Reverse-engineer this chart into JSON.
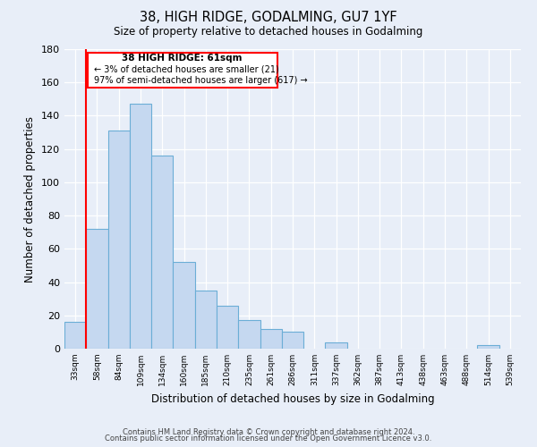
{
  "title": "38, HIGH RIDGE, GODALMING, GU7 1YF",
  "subtitle": "Size of property relative to detached houses in Godalming",
  "xlabel": "Distribution of detached houses by size in Godalming",
  "ylabel": "Number of detached properties",
  "bin_labels": [
    "33sqm",
    "58sqm",
    "84sqm",
    "109sqm",
    "134sqm",
    "160sqm",
    "185sqm",
    "210sqm",
    "235sqm",
    "261sqm",
    "286sqm",
    "311sqm",
    "337sqm",
    "362sqm",
    "387sqm",
    "413sqm",
    "438sqm",
    "463sqm",
    "488sqm",
    "514sqm",
    "539sqm"
  ],
  "bar_values": [
    16,
    72,
    131,
    147,
    116,
    52,
    35,
    26,
    17,
    12,
    10,
    0,
    4,
    0,
    0,
    0,
    0,
    0,
    0,
    2,
    0
  ],
  "bar_color": "#c5d8f0",
  "bar_edge_color": "#6baed6",
  "ylim": [
    0,
    180
  ],
  "yticks": [
    0,
    20,
    40,
    60,
    80,
    100,
    120,
    140,
    160,
    180
  ],
  "red_line_bin": 1,
  "annotation_text_line1": "38 HIGH RIDGE: 61sqm",
  "annotation_text_line2": "← 3% of detached houses are smaller (21)",
  "annotation_text_line3": "97% of semi-detached houses are larger (617) →",
  "footer_line1": "Contains HM Land Registry data © Crown copyright and database right 2024.",
  "footer_line2": "Contains public sector information licensed under the Open Government Licence v3.0.",
  "background_color": "#e8eef8",
  "plot_bg_color": "#e8eef8"
}
